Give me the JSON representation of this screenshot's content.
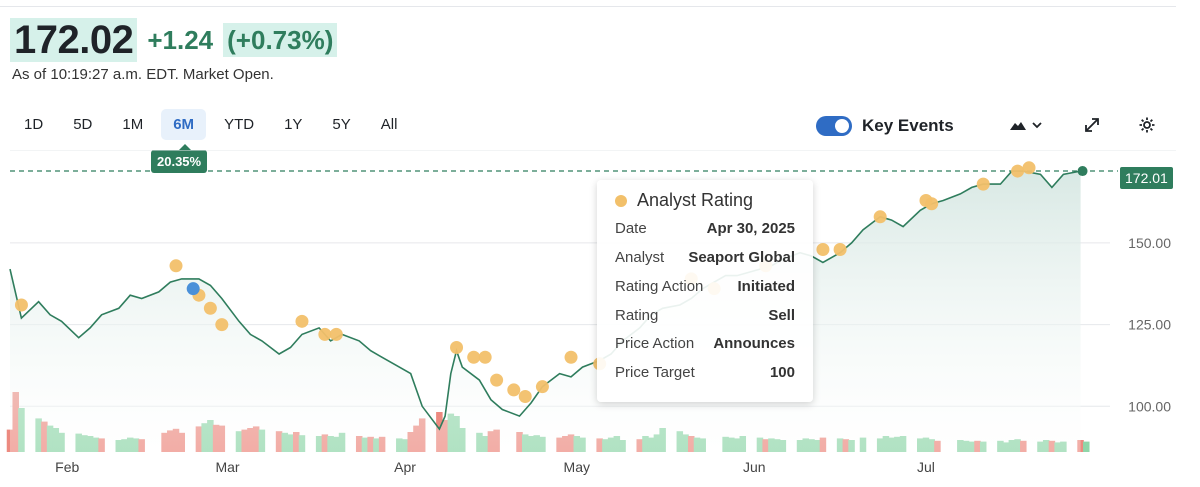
{
  "quote": {
    "price": "172.02",
    "change": "+1.24",
    "change_pct": "(+0.73%)",
    "as_of": "As of 10:19:27 a.m. EDT. Market Open."
  },
  "ranges": [
    "1D",
    "5D",
    "1M",
    "6M",
    "YTD",
    "1Y",
    "5Y",
    "All"
  ],
  "active_range": "6M",
  "period_performance": "20.35%",
  "key_events": {
    "label": "Key Events",
    "enabled": true
  },
  "tools": {
    "chart_type_icon": "mountain-chart-icon",
    "expand_icon": "expand-icon",
    "settings_icon": "gear-icon"
  },
  "colors": {
    "accent": "#2f7d5d",
    "line": "#2f7d5d",
    "area": "#e3eeec",
    "analyst_dot": "#f2c06a",
    "event_dot_blue": "#4a90d9",
    "vol_up": "#8fd6a9",
    "vol_down": "#ec8a80",
    "toggle": "#2f6cc4"
  },
  "tooltip": {
    "title": "Analyst Rating",
    "rows": [
      {
        "k": "Date",
        "v": "Apr 30, 2025"
      },
      {
        "k": "Analyst",
        "v": "Seaport Global"
      },
      {
        "k": "Rating Action",
        "v": "Initiated"
      },
      {
        "k": "Rating",
        "v": "Sell"
      },
      {
        "k": "Price Action",
        "v": "Announces"
      },
      {
        "k": "Price Target",
        "v": "100"
      }
    ]
  },
  "last_value_label": "172.01",
  "chart_data": {
    "type": "line",
    "y_ticks": [
      100,
      125,
      150
    ],
    "y_tick_labels": [
      "100.00",
      "125.00",
      "150.00"
    ],
    "ylim": [
      86,
      176
    ],
    "x_tick_labels": [
      {
        "label": "Feb",
        "date": "2025-02-01"
      },
      {
        "label": "Mar",
        "date": "2025-03-01"
      },
      {
        "label": "Apr",
        "date": "2025-04-01"
      },
      {
        "label": "May",
        "date": "2025-05-01"
      },
      {
        "label": "Jun",
        "date": "2025-06-01"
      },
      {
        "label": "Jul",
        "date": "2025-07-01"
      }
    ],
    "x_range": [
      "2025-01-22",
      "2025-07-30"
    ],
    "current_price": 172.01,
    "series": [
      {
        "values": [
          [
            "2025-01-22",
            142
          ],
          [
            "2025-01-24",
            127
          ],
          [
            "2025-01-27",
            132
          ],
          [
            "2025-01-29",
            128
          ],
          [
            "2025-01-31",
            126
          ],
          [
            "2025-02-03",
            121
          ],
          [
            "2025-02-05",
            124
          ],
          [
            "2025-02-07",
            128
          ],
          [
            "2025-02-10",
            130
          ],
          [
            "2025-02-12",
            134
          ],
          [
            "2025-02-14",
            133
          ],
          [
            "2025-02-17",
            135
          ],
          [
            "2025-02-19",
            138
          ],
          [
            "2025-02-21",
            139
          ],
          [
            "2025-02-24",
            139
          ],
          [
            "2025-02-26",
            137
          ],
          [
            "2025-02-28",
            133
          ],
          [
            "2025-03-03",
            126
          ],
          [
            "2025-03-05",
            122
          ],
          [
            "2025-03-07",
            120
          ],
          [
            "2025-03-10",
            116
          ],
          [
            "2025-03-12",
            118
          ],
          [
            "2025-03-14",
            122
          ],
          [
            "2025-03-17",
            124
          ],
          [
            "2025-03-19",
            120
          ],
          [
            "2025-03-21",
            122
          ],
          [
            "2025-03-24",
            120
          ],
          [
            "2025-03-26",
            117
          ],
          [
            "2025-03-28",
            115
          ],
          [
            "2025-03-31",
            112
          ],
          [
            "2025-04-02",
            110
          ],
          [
            "2025-04-04",
            100
          ],
          [
            "2025-04-07",
            93
          ],
          [
            "2025-04-08",
            97
          ],
          [
            "2025-04-09",
            110
          ],
          [
            "2025-04-10",
            117
          ],
          [
            "2025-04-11",
            112
          ],
          [
            "2025-04-14",
            108
          ],
          [
            "2025-04-16",
            102
          ],
          [
            "2025-04-18",
            99
          ],
          [
            "2025-04-21",
            97
          ],
          [
            "2025-04-23",
            101
          ],
          [
            "2025-04-25",
            106
          ],
          [
            "2025-04-28",
            110
          ],
          [
            "2025-04-30",
            109
          ],
          [
            "2025-05-02",
            112
          ],
          [
            "2025-05-05",
            114
          ],
          [
            "2025-05-07",
            116
          ],
          [
            "2025-05-09",
            120
          ],
          [
            "2025-05-12",
            124
          ],
          [
            "2025-05-14",
            128
          ],
          [
            "2025-05-16",
            130
          ],
          [
            "2025-05-19",
            131
          ],
          [
            "2025-05-21",
            133
          ],
          [
            "2025-05-23",
            136
          ],
          [
            "2025-05-27",
            140
          ],
          [
            "2025-05-29",
            140
          ],
          [
            "2025-06-02",
            142
          ],
          [
            "2025-06-04",
            143
          ],
          [
            "2025-06-06",
            145
          ],
          [
            "2025-06-09",
            147
          ],
          [
            "2025-06-11",
            146
          ],
          [
            "2025-06-13",
            144
          ],
          [
            "2025-06-16",
            147
          ],
          [
            "2025-06-18",
            150
          ],
          [
            "2025-06-20",
            154
          ],
          [
            "2025-06-23",
            158
          ],
          [
            "2025-06-25",
            157
          ],
          [
            "2025-06-27",
            155
          ],
          [
            "2025-06-30",
            160
          ],
          [
            "2025-07-02",
            162
          ],
          [
            "2025-07-04",
            163
          ],
          [
            "2025-07-07",
            165
          ],
          [
            "2025-07-09",
            167
          ],
          [
            "2025-07-11",
            168
          ],
          [
            "2025-07-14",
            168
          ],
          [
            "2025-07-16",
            172
          ],
          [
            "2025-07-18",
            172
          ],
          [
            "2025-07-21",
            171
          ],
          [
            "2025-07-23",
            167
          ],
          [
            "2025-07-25",
            171
          ],
          [
            "2025-07-28",
            172
          ]
        ]
      }
    ],
    "analyst_events": [
      [
        "2025-01-24",
        131
      ],
      [
        "2025-02-20",
        143
      ],
      [
        "2025-02-24",
        134
      ],
      [
        "2025-02-26",
        130
      ],
      [
        "2025-02-28",
        125
      ],
      [
        "2025-03-14",
        126
      ],
      [
        "2025-03-18",
        122
      ],
      [
        "2025-03-20",
        122
      ],
      [
        "2025-04-10",
        118
      ],
      [
        "2025-04-13",
        115
      ],
      [
        "2025-04-15",
        115
      ],
      [
        "2025-04-17",
        108
      ],
      [
        "2025-04-20",
        105
      ],
      [
        "2025-04-22",
        103
      ],
      [
        "2025-04-25",
        106
      ],
      [
        "2025-04-30",
        115
      ],
      [
        "2025-05-05",
        113
      ],
      [
        "2025-05-21",
        139
      ],
      [
        "2025-05-25",
        136
      ],
      [
        "2025-06-03",
        143
      ],
      [
        "2025-06-13",
        148
      ],
      [
        "2025-06-16",
        148
      ],
      [
        "2025-06-23",
        158
      ],
      [
        "2025-07-01",
        163
      ],
      [
        "2025-07-02",
        162
      ],
      [
        "2025-07-11",
        168
      ],
      [
        "2025-07-17",
        172
      ],
      [
        "2025-07-19",
        173
      ]
    ],
    "other_events": [
      [
        "2025-02-23",
        136
      ]
    ],
    "volume": [
      [
        "2025-01-22",
        0.28,
        "down"
      ],
      [
        "2025-01-23",
        0.75,
        "down"
      ],
      [
        "2025-01-24",
        0.55,
        "up"
      ],
      [
        "2025-01-27",
        0.42,
        "up"
      ],
      [
        "2025-01-28",
        0.38,
        "down"
      ],
      [
        "2025-01-29",
        0.33,
        "up"
      ],
      [
        "2025-01-30",
        0.3,
        "up"
      ],
      [
        "2025-01-31",
        0.24,
        "up"
      ],
      [
        "2025-02-03",
        0.23,
        "up"
      ],
      [
        "2025-02-04",
        0.21,
        "up"
      ],
      [
        "2025-02-05",
        0.2,
        "up"
      ],
      [
        "2025-02-06",
        0.18,
        "up"
      ],
      [
        "2025-02-07",
        0.17,
        "down"
      ],
      [
        "2025-02-10",
        0.15,
        "up"
      ],
      [
        "2025-02-11",
        0.16,
        "up"
      ],
      [
        "2025-02-12",
        0.18,
        "up"
      ],
      [
        "2025-02-13",
        0.17,
        "up"
      ],
      [
        "2025-02-14",
        0.16,
        "down"
      ],
      [
        "2025-02-18",
        0.24,
        "down"
      ],
      [
        "2025-02-19",
        0.27,
        "down"
      ],
      [
        "2025-02-20",
        0.29,
        "down"
      ],
      [
        "2025-02-21",
        0.24,
        "down"
      ],
      [
        "2025-02-24",
        0.32,
        "down"
      ],
      [
        "2025-02-25",
        0.36,
        "up"
      ],
      [
        "2025-02-26",
        0.4,
        "up"
      ],
      [
        "2025-02-27",
        0.34,
        "down"
      ],
      [
        "2025-02-28",
        0.33,
        "down"
      ],
      [
        "2025-03-03",
        0.26,
        "up"
      ],
      [
        "2025-03-04",
        0.28,
        "down"
      ],
      [
        "2025-03-05",
        0.3,
        "down"
      ],
      [
        "2025-03-06",
        0.32,
        "down"
      ],
      [
        "2025-03-07",
        0.28,
        "up"
      ],
      [
        "2025-03-10",
        0.26,
        "down"
      ],
      [
        "2025-03-11",
        0.24,
        "up"
      ],
      [
        "2025-03-12",
        0.22,
        "up"
      ],
      [
        "2025-03-13",
        0.25,
        "down"
      ],
      [
        "2025-03-14",
        0.21,
        "up"
      ],
      [
        "2025-03-17",
        0.2,
        "up"
      ],
      [
        "2025-03-18",
        0.22,
        "down"
      ],
      [
        "2025-03-19",
        0.2,
        "up"
      ],
      [
        "2025-03-20",
        0.19,
        "up"
      ],
      [
        "2025-03-21",
        0.24,
        "up"
      ],
      [
        "2025-03-24",
        0.2,
        "down"
      ],
      [
        "2025-03-25",
        0.18,
        "up"
      ],
      [
        "2025-03-26",
        0.19,
        "down"
      ],
      [
        "2025-03-27",
        0.17,
        "up"
      ],
      [
        "2025-03-28",
        0.19,
        "down"
      ],
      [
        "2025-03-31",
        0.17,
        "up"
      ],
      [
        "2025-04-01",
        0.16,
        "up"
      ],
      [
        "2025-04-02",
        0.25,
        "down"
      ],
      [
        "2025-04-03",
        0.33,
        "down"
      ],
      [
        "2025-04-04",
        0.42,
        "down"
      ],
      [
        "2025-04-07",
        0.5,
        "down"
      ],
      [
        "2025-04-08",
        0.4,
        "down"
      ],
      [
        "2025-04-09",
        0.48,
        "up"
      ],
      [
        "2025-04-10",
        0.45,
        "up"
      ],
      [
        "2025-04-11",
        0.3,
        "up"
      ],
      [
        "2025-04-14",
        0.24,
        "up"
      ],
      [
        "2025-04-15",
        0.2,
        "up"
      ],
      [
        "2025-04-16",
        0.26,
        "down"
      ],
      [
        "2025-04-17",
        0.28,
        "down"
      ],
      [
        "2025-04-21",
        0.25,
        "down"
      ],
      [
        "2025-04-22",
        0.22,
        "up"
      ],
      [
        "2025-04-23",
        0.2,
        "up"
      ],
      [
        "2025-04-24",
        0.21,
        "up"
      ],
      [
        "2025-04-25",
        0.19,
        "up"
      ],
      [
        "2025-04-28",
        0.18,
        "down"
      ],
      [
        "2025-04-29",
        0.2,
        "down"
      ],
      [
        "2025-04-30",
        0.22,
        "down"
      ],
      [
        "2025-05-01",
        0.2,
        "up"
      ],
      [
        "2025-05-02",
        0.18,
        "up"
      ],
      [
        "2025-05-05",
        0.17,
        "down"
      ],
      [
        "2025-05-06",
        0.16,
        "up"
      ],
      [
        "2025-05-07",
        0.18,
        "up"
      ],
      [
        "2025-05-08",
        0.2,
        "up"
      ],
      [
        "2025-05-09",
        0.15,
        "up"
      ],
      [
        "2025-05-12",
        0.16,
        "down"
      ],
      [
        "2025-05-13",
        0.2,
        "up"
      ],
      [
        "2025-05-14",
        0.18,
        "up"
      ],
      [
        "2025-05-15",
        0.22,
        "up"
      ],
      [
        "2025-05-16",
        0.3,
        "up"
      ],
      [
        "2025-05-19",
        0.26,
        "up"
      ],
      [
        "2025-05-20",
        0.22,
        "up"
      ],
      [
        "2025-05-21",
        0.2,
        "down"
      ],
      [
        "2025-05-22",
        0.18,
        "up"
      ],
      [
        "2025-05-23",
        0.17,
        "up"
      ],
      [
        "2025-05-27",
        0.19,
        "up"
      ],
      [
        "2025-05-28",
        0.18,
        "up"
      ],
      [
        "2025-05-29",
        0.17,
        "up"
      ],
      [
        "2025-05-30",
        0.2,
        "up"
      ],
      [
        "2025-06-02",
        0.18,
        "up"
      ],
      [
        "2025-06-03",
        0.16,
        "down"
      ],
      [
        "2025-06-04",
        0.17,
        "up"
      ],
      [
        "2025-06-05",
        0.16,
        "up"
      ],
      [
        "2025-06-06",
        0.15,
        "up"
      ],
      [
        "2025-06-09",
        0.15,
        "up"
      ],
      [
        "2025-06-10",
        0.17,
        "up"
      ],
      [
        "2025-06-11",
        0.16,
        "up"
      ],
      [
        "2025-06-12",
        0.15,
        "up"
      ],
      [
        "2025-06-13",
        0.18,
        "down"
      ],
      [
        "2025-06-16",
        0.17,
        "up"
      ],
      [
        "2025-06-17",
        0.16,
        "down"
      ],
      [
        "2025-06-18",
        0.15,
        "up"
      ],
      [
        "2025-06-20",
        0.18,
        "up"
      ],
      [
        "2025-06-23",
        0.17,
        "up"
      ],
      [
        "2025-06-24",
        0.2,
        "up"
      ],
      [
        "2025-06-25",
        0.18,
        "up"
      ],
      [
        "2025-06-26",
        0.19,
        "up"
      ],
      [
        "2025-06-27",
        0.2,
        "up"
      ],
      [
        "2025-06-30",
        0.17,
        "up"
      ],
      [
        "2025-07-01",
        0.18,
        "up"
      ],
      [
        "2025-07-02",
        0.16,
        "up"
      ],
      [
        "2025-07-03",
        0.14,
        "down"
      ],
      [
        "2025-07-07",
        0.15,
        "up"
      ],
      [
        "2025-07-08",
        0.14,
        "up"
      ],
      [
        "2025-07-09",
        0.13,
        "up"
      ],
      [
        "2025-07-10",
        0.14,
        "down"
      ],
      [
        "2025-07-11",
        0.13,
        "up"
      ],
      [
        "2025-07-14",
        0.14,
        "up"
      ],
      [
        "2025-07-15",
        0.12,
        "up"
      ],
      [
        "2025-07-16",
        0.15,
        "up"
      ],
      [
        "2025-07-17",
        0.16,
        "up"
      ],
      [
        "2025-07-18",
        0.14,
        "down"
      ],
      [
        "2025-07-21",
        0.13,
        "up"
      ],
      [
        "2025-07-22",
        0.15,
        "up"
      ],
      [
        "2025-07-23",
        0.14,
        "down"
      ],
      [
        "2025-07-24",
        0.12,
        "up"
      ],
      [
        "2025-07-25",
        0.13,
        "up"
      ],
      [
        "2025-07-28",
        0.15,
        "down"
      ],
      [
        "2025-07-29",
        0.13,
        "up"
      ]
    ]
  }
}
